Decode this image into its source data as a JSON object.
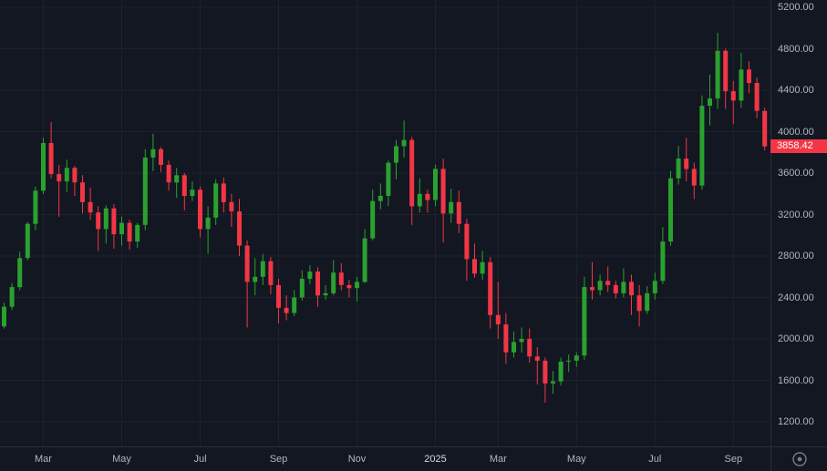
{
  "colors": {
    "background": "#131722",
    "grid": "#1e222d",
    "axis_line": "#2a2e39",
    "axis_text": "#b2b5be",
    "year_text": "#d8d9db",
    "up": "#2aa12f",
    "down": "#f23645",
    "last_price_bg": "#f23645",
    "last_price_text": "#ffffff",
    "icon": "#787b86"
  },
  "axis_corner": {
    "icon": "eye-icon"
  },
  "chart_data": {
    "type": "candlestick",
    "title": "",
    "legend_position": "none",
    "grid": true,
    "price_axis": {
      "min": 1200,
      "max": 5200,
      "step": 400,
      "tick_labels": [
        "5200.00",
        "4800.00",
        "4400.00",
        "4000.00",
        "3600.00",
        "3200.00",
        "2800.00",
        "2400.00",
        "2000.00",
        "1600.00",
        "1200.00"
      ]
    },
    "time_ticks": [
      {
        "label": "Mar",
        "index": 5
      },
      {
        "label": "May",
        "index": 15
      },
      {
        "label": "Jul",
        "index": 25
      },
      {
        "label": "Sep",
        "index": 35
      },
      {
        "label": "Nov",
        "index": 45
      },
      {
        "label": "2025",
        "index": 55,
        "emphasis": true
      },
      {
        "label": "Mar",
        "index": 63
      },
      {
        "label": "May",
        "index": 73
      },
      {
        "label": "Jul",
        "index": 83
      },
      {
        "label": "Sep",
        "index": 93
      }
    ],
    "last_price": 3858.42,
    "last_price_label": "3858.42",
    "candles": [
      [
        2120,
        2350,
        2100,
        2310
      ],
      [
        2310,
        2540,
        2280,
        2500
      ],
      [
        2500,
        2840,
        2470,
        2780
      ],
      [
        2780,
        3130,
        2760,
        3110
      ],
      [
        3110,
        3470,
        3050,
        3430
      ],
      [
        3430,
        3940,
        3400,
        3890
      ],
      [
        3890,
        4093,
        3550,
        3590
      ],
      [
        3590,
        3680,
        3180,
        3520
      ],
      [
        3520,
        3730,
        3420,
        3650
      ],
      [
        3650,
        3670,
        3380,
        3510
      ],
      [
        3510,
        3580,
        3210,
        3320
      ],
      [
        3320,
        3460,
        3150,
        3220
      ],
      [
        3220,
        3280,
        2850,
        3060
      ],
      [
        3060,
        3290,
        2920,
        3260
      ],
      [
        3260,
        3300,
        2870,
        3010
      ],
      [
        3010,
        3180,
        2900,
        3120
      ],
      [
        3120,
        3150,
        2860,
        2940
      ],
      [
        2940,
        3120,
        2880,
        3100
      ],
      [
        3100,
        3830,
        3050,
        3750
      ],
      [
        3750,
        3980,
        3620,
        3830
      ],
      [
        3830,
        3850,
        3610,
        3680
      ],
      [
        3680,
        3720,
        3430,
        3510
      ],
      [
        3510,
        3650,
        3360,
        3580
      ],
      [
        3580,
        3600,
        3240,
        3380
      ],
      [
        3380,
        3520,
        3330,
        3440
      ],
      [
        3440,
        3470,
        2980,
        3060
      ],
      [
        3060,
        3280,
        2820,
        3170
      ],
      [
        3170,
        3540,
        3100,
        3500
      ],
      [
        3500,
        3560,
        3220,
        3320
      ],
      [
        3320,
        3400,
        3080,
        3230
      ],
      [
        3230,
        3350,
        2800,
        2900
      ],
      [
        2900,
        2950,
        2111,
        2550
      ],
      [
        2550,
        2780,
        2420,
        2600
      ],
      [
        2600,
        2820,
        2520,
        2750
      ],
      [
        2750,
        2790,
        2430,
        2520
      ],
      [
        2520,
        2580,
        2150,
        2300
      ],
      [
        2300,
        2420,
        2180,
        2250
      ],
      [
        2250,
        2470,
        2220,
        2400
      ],
      [
        2400,
        2660,
        2370,
        2580
      ],
      [
        2580,
        2710,
        2530,
        2650
      ],
      [
        2650,
        2690,
        2310,
        2420
      ],
      [
        2420,
        2520,
        2380,
        2440
      ],
      [
        2440,
        2760,
        2420,
        2640
      ],
      [
        2640,
        2730,
        2470,
        2520
      ],
      [
        2520,
        2570,
        2400,
        2490
      ],
      [
        2490,
        2600,
        2360,
        2550
      ],
      [
        2550,
        3060,
        2540,
        2970
      ],
      [
        2970,
        3440,
        2950,
        3330
      ],
      [
        3330,
        3500,
        3250,
        3380
      ],
      [
        3380,
        3720,
        3280,
        3700
      ],
      [
        3700,
        3920,
        3540,
        3860
      ],
      [
        3860,
        4107,
        3750,
        3920
      ],
      [
        3920,
        3950,
        3100,
        3280
      ],
      [
        3280,
        3550,
        3220,
        3400
      ],
      [
        3400,
        3440,
        3220,
        3340
      ],
      [
        3340,
        3680,
        3280,
        3640
      ],
      [
        3640,
        3740,
        2930,
        3210
      ],
      [
        3210,
        3450,
        3120,
        3320
      ],
      [
        3320,
        3430,
        3020,
        3110
      ],
      [
        3110,
        3160,
        2560,
        2770
      ],
      [
        2770,
        2920,
        2590,
        2630
      ],
      [
        2630,
        2850,
        2570,
        2740
      ],
      [
        2740,
        2790,
        2100,
        2230
      ],
      [
        2230,
        2550,
        2000,
        2140
      ],
      [
        2140,
        2250,
        1760,
        1870
      ],
      [
        1870,
        2070,
        1820,
        1970
      ],
      [
        1970,
        2110,
        1870,
        2000
      ],
      [
        2000,
        2100,
        1770,
        1830
      ],
      [
        1830,
        1920,
        1560,
        1790
      ],
      [
        1790,
        1820,
        1385,
        1570
      ],
      [
        1570,
        1690,
        1470,
        1590
      ],
      [
        1590,
        1820,
        1550,
        1780
      ],
      [
        1780,
        1850,
        1680,
        1790
      ],
      [
        1790,
        1870,
        1730,
        1840
      ],
      [
        1840,
        2600,
        1800,
        2500
      ],
      [
        2500,
        2740,
        2380,
        2470
      ],
      [
        2470,
        2620,
        2420,
        2560
      ],
      [
        2560,
        2700,
        2450,
        2520
      ],
      [
        2520,
        2560,
        2390,
        2440
      ],
      [
        2440,
        2680,
        2400,
        2550
      ],
      [
        2550,
        2620,
        2230,
        2420
      ],
      [
        2420,
        2520,
        2120,
        2270
      ],
      [
        2270,
        2510,
        2240,
        2440
      ],
      [
        2440,
        2640,
        2380,
        2560
      ],
      [
        2560,
        3080,
        2530,
        2940
      ],
      [
        2940,
        3620,
        2900,
        3550
      ],
      [
        3550,
        3860,
        3490,
        3740
      ],
      [
        3740,
        3940,
        3520,
        3640
      ],
      [
        3640,
        3700,
        3350,
        3480
      ],
      [
        3480,
        4350,
        3440,
        4250
      ],
      [
        4250,
        4550,
        4060,
        4320
      ],
      [
        4320,
        4955,
        4220,
        4780
      ],
      [
        4780,
        4800,
        4220,
        4390
      ],
      [
        4390,
        4490,
        4070,
        4300
      ],
      [
        4300,
        4760,
        4230,
        4600
      ],
      [
        4600,
        4680,
        4370,
        4470
      ],
      [
        4470,
        4520,
        4130,
        4200
      ],
      [
        4200,
        4230,
        3820,
        3858.42
      ]
    ]
  }
}
